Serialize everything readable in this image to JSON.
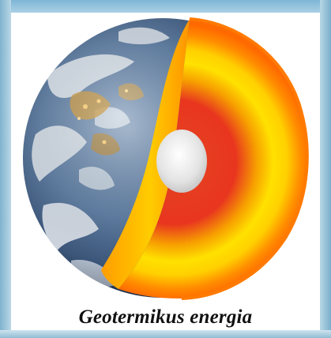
{
  "caption": "Geotermikus energia",
  "colors": {
    "frame": "#8fbcd3",
    "ocean": "#3f5d82",
    "cloud": "#eef2f5",
    "land_lights": "#d9a64a",
    "crust": "#f7b500",
    "mantle_outer": "#ff8c00",
    "mantle_mid": "#ffe100",
    "outer_core": "#e83222",
    "inner_core": "#f2f2f2"
  },
  "icons": {
    "earth": "earth-cutaway-icon"
  }
}
